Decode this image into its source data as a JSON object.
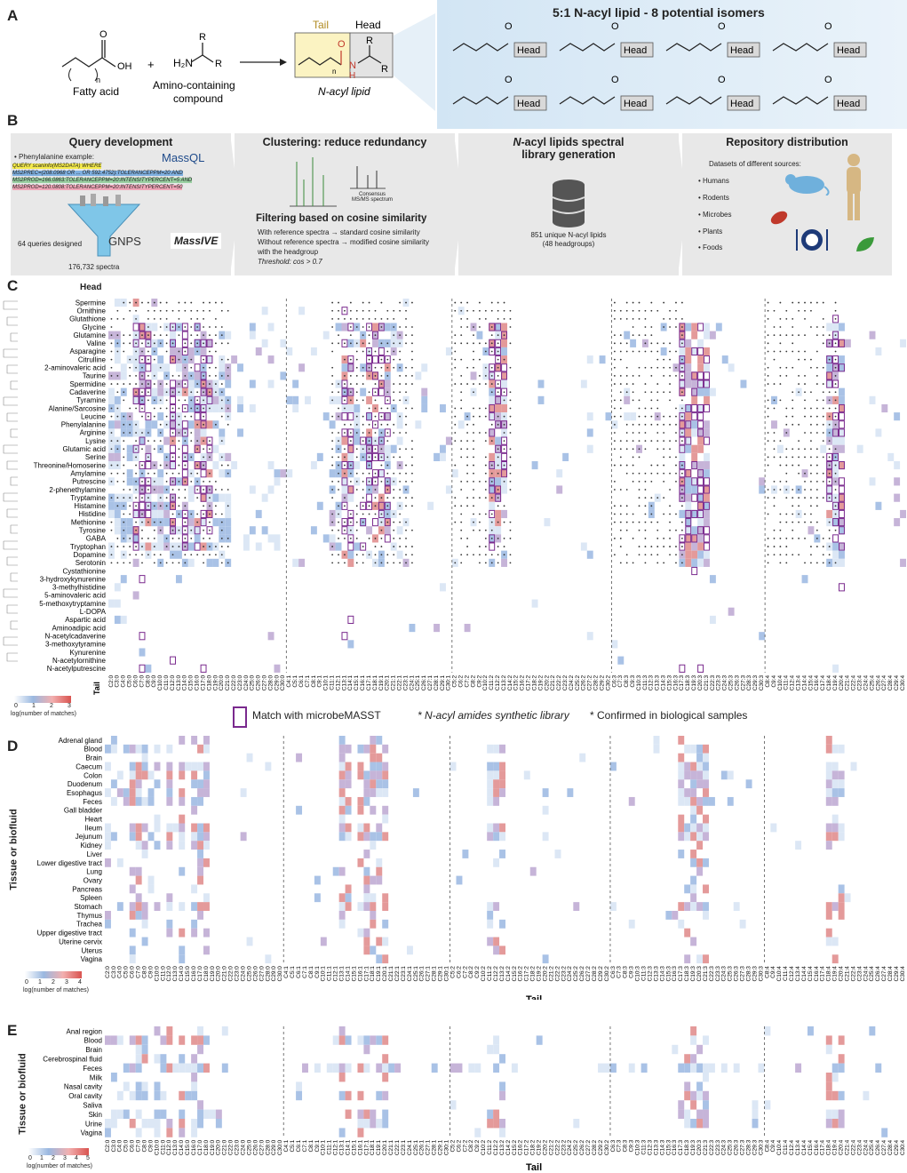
{
  "panel_a": {
    "label": "A",
    "fatty_acid": "Fatty acid",
    "fatty_acid_n": "n",
    "fatty_acid_oh": "OH",
    "fatty_acid_o": "O",
    "plus": "+",
    "amine_r1": "R",
    "amine_r2": "R",
    "amine_h2n": "H₂N",
    "amine_caption": "Amino-containing\ncompound",
    "tail": "Tail",
    "head": "Head",
    "product_o": "O",
    "product_n": "N",
    "product_h": "H",
    "product_n_sub": "n",
    "product_r1": "R",
    "product_r2": "R",
    "product_caption": "N-acyl lipid",
    "isomer_title": "5:1 N-acyl lipid - 8 potential isomers",
    "isomer_head": "Head",
    "isomer_o": "O"
  },
  "panel_b": {
    "label": "B",
    "box1_title": "Query development",
    "box1_bullet": "• Phenylalanine example:",
    "massql": "MassQL",
    "query_lines": [
      "QUERY scaninfo(MS2DATA) WHERE",
      "MS2PREC=(208.0968 OR ... OR 592.4752):TOLERANCEPPM=20 AND",
      "MS2PROD=166.0863:TOLERANCEPPM=20:INTENSITYPERCENT=5 AND",
      "MS2PROD=120.0808:TOLERANCEPPM=20:INTENSITYPERCENT=50"
    ],
    "queries": "64 queries designed",
    "gnps": "GNPS",
    "massive": "MassIVE",
    "spectra": "176,732 spectra",
    "box2_title": "Clustering: reduce redundancy",
    "consensus": "Consensus\nMS/MS spectrum",
    "filter_title": "Filtering based on cosine similarity",
    "filter_lines": [
      "With reference spectra → standard cosine similarity",
      "Without reference spectra → modified cosine similarity",
      "with the headgroup"
    ],
    "threshold": "Threshold: cos > 0.7",
    "box3_title": "N-acyl lipids spectral\nlibrary generation",
    "library_line1": "851 unique N-acyl lipids",
    "library_line2": "(48 headgroups)",
    "box4_title": "Repository distribution",
    "datasets": "Datasets of different sources:",
    "sources": [
      "• Humans",
      "• Rodents",
      "• Microbes",
      "• Plants",
      "• Foods"
    ]
  },
  "panel_c": {
    "label": "C",
    "head_label": "Head",
    "tail_label": "Tail",
    "legend_ticks": [
      "0",
      "1",
      "2",
      "3"
    ],
    "legend_title": "log(number of matches)",
    "key_box": "Match with microbeMASST",
    "key_dot": "* N-acyl amides synthetic library",
    "key_red": "* Confirmed in biological samples",
    "heads": [
      "Spermine",
      "Ornithine",
      "Glutathione",
      "Glycine",
      "Glutamine",
      "Valine",
      "Asparagine",
      "Citrulline",
      "2-aminovaleric acid",
      "Taurine",
      "Spermidine",
      "Cadaverine",
      "Tyramine",
      "Alanine/Sarcosine",
      "Leucine",
      "Phenylalanine",
      "Arginine",
      "Lysine",
      "Glutamic acid",
      "Serine",
      "Threonine/Homoserine",
      "Amylamine",
      "Putrescine",
      "2-phenethylamine",
      "Tryptamine",
      "Histamine",
      "Histidine",
      "Methionine",
      "Tyrosine",
      "GABA",
      "Tryptophan",
      "Dopamine",
      "Serotonin",
      "Cystathionine",
      "3-hydroxykynurenine",
      "3-methylhistidine",
      "5-aminovaleric acid",
      "5-methoxytryptamine",
      "L-DOPA",
      "Aspartic acid",
      "Aminoadipic acid",
      "N-acetylcadaverine",
      "3-methoxytyramine",
      "Kynurenine",
      "N-acetylornithine",
      "N-acetylputrescine"
    ]
  },
  "panel_d": {
    "label": "D",
    "y_title": "Tissue or biofluid",
    "tail_label": "Tail",
    "legend_ticks": [
      "0",
      "1",
      "2",
      "3",
      "4"
    ],
    "legend_title": "log(number of matches)",
    "tissues": [
      "Adrenal gland",
      "Blood",
      "Brain",
      "Caecum",
      "Colon",
      "Duodenum",
      "Esophagus",
      "Feces",
      "Gall bladder",
      "Heart",
      "Ileum",
      "Jejunum",
      "Kidney",
      "Liver",
      "Lower digestive tract",
      "Lung",
      "Ovary",
      "Pancreas",
      "Spleen",
      "Stomach",
      "Thymus",
      "Trachea",
      "Upper digestive tract",
      "Uterine cervix",
      "Uterus",
      "Vagina"
    ]
  },
  "panel_e": {
    "label": "E",
    "y_title": "Tissue or biofluid",
    "tail_label": "Tail",
    "legend_ticks": [
      "0",
      "1",
      "2",
      "3",
      "4",
      "5"
    ],
    "legend_title": "log(number of matches)",
    "tissues": [
      "Anal region",
      "Blood",
      "Brain",
      "Cerebrospinal fluid",
      "Feces",
      "Milk",
      "Nasal cavity",
      "Oral cavity",
      "Saliva",
      "Skin",
      "Urine",
      "Vagina"
    ]
  },
  "tail_ticks": [
    "C2:0",
    "C3:0",
    "C4:0",
    "C5:0",
    "C6:0",
    "C7:0",
    "C8:0",
    "C9:0",
    "C10:0",
    "C11:0",
    "C12:0",
    "C13:0",
    "C14:0",
    "C15:0",
    "C16:0",
    "C17:0",
    "C18:0",
    "C19:0",
    "C20:0",
    "C21:0",
    "C22:0",
    "C23:0",
    "C24:0",
    "C25:0",
    "C26:0",
    "C27:0",
    "C28:0",
    "C29:0",
    "C30:0",
    "C4:1",
    "C5:1",
    "C6:1",
    "C7:1",
    "C8:1",
    "C9:1",
    "C10:1",
    "C11:1",
    "C12:1",
    "C13:1",
    "C14:1",
    "C15:1",
    "C16:1",
    "C17:1",
    "C18:1",
    "C19:1",
    "C20:1",
    "C21:1",
    "C22:1",
    "C23:1",
    "C24:1",
    "C25:1",
    "C26:1",
    "C27:1",
    "C28:1",
    "C29:1",
    "C30:1",
    "C5:2",
    "C6:2",
    "C7:2",
    "C8:2",
    "C9:2",
    "C10:2",
    "C11:2",
    "C12:2",
    "C13:2",
    "C14:2",
    "C15:2",
    "C16:2",
    "C17:2",
    "C18:2",
    "C19:2",
    "C20:2",
    "C21:2",
    "C22:2",
    "C23:2",
    "C24:2",
    "C25:2",
    "C26:2",
    "C27:2",
    "C28:2",
    "C29:2",
    "C30:2",
    "C6:3",
    "C7:3",
    "C8:3",
    "C9:3",
    "C10:3",
    "C11:3",
    "C12:3",
    "C13:3",
    "C14:3",
    "C15:3",
    "C16:3",
    "C17:3",
    "C18:3",
    "C19:3",
    "C20:3",
    "C21:3",
    "C22:3",
    "C23:3",
    "C24:3",
    "C25:3",
    "C26:3",
    "C27:3",
    "C28:3",
    "C29:3",
    "C30:3",
    "C8:4",
    "C9:4",
    "C10:4",
    "C11:4",
    "C12:4",
    "C13:4",
    "C14:4",
    "C15:4",
    "C16:4",
    "C17:4",
    "C18:4",
    "C19:4",
    "C20:4",
    "C21:4",
    "C22:4",
    "C23:4",
    "C24:4",
    "C25:4",
    "C26:4",
    "C27:4",
    "C28:4",
    "C29:4",
    "C30:4"
  ],
  "colors": {
    "blue": "#4f7fc4",
    "red": "#d9534f",
    "purple": "#7a2a8e",
    "panel_grey": "#e8e8e8",
    "isomer_blue": "#d6e8f6"
  }
}
